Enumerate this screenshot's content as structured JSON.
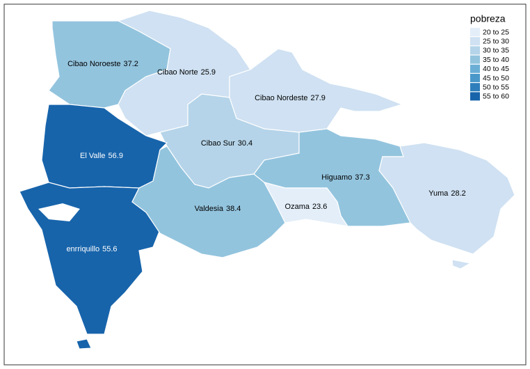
{
  "chart_data": {
    "type": "choropleth",
    "regions": [
      {
        "name": "Cibao Noroeste",
        "value": 37.2,
        "color": "#93c4de"
      },
      {
        "name": "Cibao Norte",
        "value": 25.9,
        "color": "#cfe1f2"
      },
      {
        "name": "Cibao Nordeste",
        "value": 27.9,
        "color": "#cfe1f2"
      },
      {
        "name": "Cibao Sur",
        "value": 30.4,
        "color": "#b5d4e9"
      },
      {
        "name": "El Valle",
        "value": 56.9,
        "color": "#1764ab"
      },
      {
        "name": "enrriquillo",
        "value": 55.6,
        "color": "#1764ab"
      },
      {
        "name": "Valdesia",
        "value": 38.4,
        "color": "#93c4de"
      },
      {
        "name": "Higuamo",
        "value": 37.3,
        "color": "#93c4de"
      },
      {
        "name": "Ozama",
        "value": 23.6,
        "color": "#e3eef9"
      },
      {
        "name": "Yuma",
        "value": 28.2,
        "color": "#cfe1f2"
      }
    ],
    "legend": {
      "title": "pobreza",
      "items": [
        {
          "label": "20 to 25",
          "color": "#e3eef9"
        },
        {
          "label": "25 to 30",
          "color": "#cfe1f2"
        },
        {
          "label": "30 to 35",
          "color": "#b5d4e9"
        },
        {
          "label": "35 to 40",
          "color": "#93c4de"
        },
        {
          "label": "40 to 45",
          "color": "#6aaed6"
        },
        {
          "label": "45 to 50",
          "color": "#4a98c9"
        },
        {
          "label": "50 to 55",
          "color": "#2e7ebc"
        },
        {
          "label": "55 to 60",
          "color": "#1764ab"
        }
      ]
    }
  }
}
